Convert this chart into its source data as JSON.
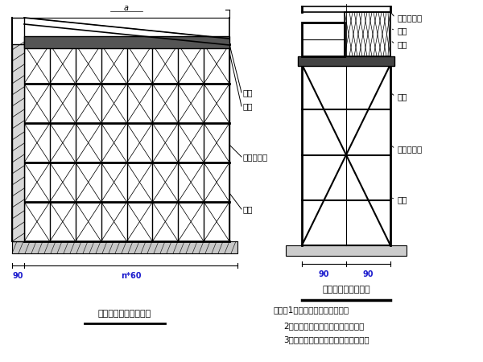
{
  "bg_color": "#ffffff",
  "line_color": "#000000",
  "text_color": "#000000",
  "label_color": "#1a1acd",
  "fig_width": 6.0,
  "fig_height": 4.5,
  "left_title": "疏梁施工支架横断面图",
  "right_title": "疏梁施工支架立面图",
  "left_dim1": "90",
  "left_dim2": "n*60",
  "right_dim1": "90",
  "right_dim2": "90",
  "notes_line1": "说明：1、本图尺寸均以厘米计。",
  "notes_line2": "2、支架底都坐在处理好的地基上，",
  "notes_line3": "3、支架高度根据增柱高度进行调垃。",
  "lbl_heng": "横梁",
  "lbl_zong": "纵梁",
  "lbl_wan": "碜扣式支架",
  "lbl_dun": "增柱",
  "lbl_ce": "侧模",
  "lbl_anquan": "安全防护网"
}
